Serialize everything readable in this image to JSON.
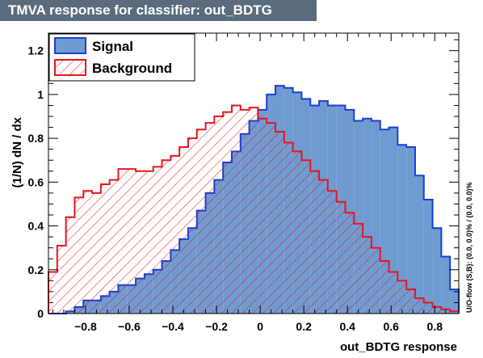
{
  "title": "TMVA response for classifier: out_BDTG",
  "colors": {
    "title_bg": "#5a6b7d",
    "signal_fill": "#6f9bd1",
    "signal_line": "#1a3fd4",
    "background_line": "#e8151e",
    "background_hatch": "#e8151e"
  },
  "chart_data": {
    "type": "bar",
    "xlabel": "out_BDTG response",
    "ylabel": "(1/N) dN / dx",
    "xlim": [
      -0.97,
      0.91
    ],
    "ylim": [
      0,
      1.28
    ],
    "x_ticks": [
      -0.8,
      -0.6,
      -0.4,
      -0.2,
      0,
      0.2,
      0.4,
      0.6,
      0.8
    ],
    "x_tick_labels": [
      "−0.8",
      "−0.6",
      "−0.4",
      "−0.2",
      "0",
      "0.2",
      "0.4",
      "0.6",
      "0.8"
    ],
    "y_ticks": [
      0,
      0.2,
      0.4,
      0.6,
      0.8,
      1,
      1.2
    ],
    "y_tick_labels": [
      "0",
      "0.2",
      "0.4",
      "0.6",
      "0.8",
      "1",
      "1.2"
    ],
    "grid": false,
    "legend_position": "top-left",
    "overflow_text": "U/O-flow (S,B): (0.0, 0.0)% / (0.0, 0.0)%",
    "bin_width": 0.04,
    "series": [
      {
        "name": "Signal",
        "style": "solid-fill",
        "bins": [
          [
            -0.97,
            0.0
          ],
          [
            -0.93,
            0.0
          ],
          [
            -0.89,
            0.01
          ],
          [
            -0.85,
            0.03
          ],
          [
            -0.81,
            0.06
          ],
          [
            -0.77,
            0.06
          ],
          [
            -0.73,
            0.08
          ],
          [
            -0.69,
            0.1
          ],
          [
            -0.65,
            0.13
          ],
          [
            -0.61,
            0.13
          ],
          [
            -0.57,
            0.16
          ],
          [
            -0.53,
            0.18
          ],
          [
            -0.49,
            0.2
          ],
          [
            -0.45,
            0.24
          ],
          [
            -0.41,
            0.29
          ],
          [
            -0.37,
            0.34
          ],
          [
            -0.33,
            0.39
          ],
          [
            -0.29,
            0.47
          ],
          [
            -0.25,
            0.55
          ],
          [
            -0.21,
            0.61
          ],
          [
            -0.17,
            0.69
          ],
          [
            -0.13,
            0.74
          ],
          [
            -0.09,
            0.82
          ],
          [
            -0.05,
            0.88
          ],
          [
            -0.01,
            0.93
          ],
          [
            0.03,
            1.0
          ],
          [
            0.07,
            1.04
          ],
          [
            0.11,
            1.03
          ],
          [
            0.15,
            1.01
          ],
          [
            0.19,
            0.98
          ],
          [
            0.23,
            0.95
          ],
          [
            0.27,
            0.97
          ],
          [
            0.31,
            0.95
          ],
          [
            0.35,
            0.95
          ],
          [
            0.39,
            0.93
          ],
          [
            0.43,
            0.88
          ],
          [
            0.47,
            0.89
          ],
          [
            0.51,
            0.88
          ],
          [
            0.55,
            0.84
          ],
          [
            0.59,
            0.85
          ],
          [
            0.63,
            0.77
          ],
          [
            0.67,
            0.76
          ],
          [
            0.71,
            0.63
          ],
          [
            0.75,
            0.52
          ],
          [
            0.79,
            0.39
          ],
          [
            0.83,
            0.26
          ],
          [
            0.87,
            0.11
          ]
        ]
      },
      {
        "name": "Background",
        "style": "hatched",
        "bins": [
          [
            -0.97,
            0.19
          ],
          [
            -0.93,
            0.31
          ],
          [
            -0.89,
            0.44
          ],
          [
            -0.85,
            0.53
          ],
          [
            -0.81,
            0.56
          ],
          [
            -0.77,
            0.55
          ],
          [
            -0.73,
            0.59
          ],
          [
            -0.69,
            0.61
          ],
          [
            -0.65,
            0.66
          ],
          [
            -0.61,
            0.66
          ],
          [
            -0.57,
            0.65
          ],
          [
            -0.53,
            0.65
          ],
          [
            -0.49,
            0.67
          ],
          [
            -0.45,
            0.7
          ],
          [
            -0.41,
            0.72
          ],
          [
            -0.37,
            0.76
          ],
          [
            -0.33,
            0.8
          ],
          [
            -0.29,
            0.84
          ],
          [
            -0.25,
            0.87
          ],
          [
            -0.21,
            0.9
          ],
          [
            -0.17,
            0.92
          ],
          [
            -0.13,
            0.95
          ],
          [
            -0.09,
            0.93
          ],
          [
            -0.05,
            0.94
          ],
          [
            -0.01,
            0.89
          ],
          [
            0.03,
            0.87
          ],
          [
            0.07,
            0.83
          ],
          [
            0.11,
            0.78
          ],
          [
            0.15,
            0.74
          ],
          [
            0.19,
            0.7
          ],
          [
            0.23,
            0.65
          ],
          [
            0.27,
            0.61
          ],
          [
            0.31,
            0.56
          ],
          [
            0.35,
            0.51
          ],
          [
            0.39,
            0.46
          ],
          [
            0.43,
            0.41
          ],
          [
            0.47,
            0.35
          ],
          [
            0.51,
            0.3
          ],
          [
            0.55,
            0.24
          ],
          [
            0.59,
            0.19
          ],
          [
            0.63,
            0.15
          ],
          [
            0.67,
            0.11
          ],
          [
            0.71,
            0.07
          ],
          [
            0.75,
            0.05
          ],
          [
            0.79,
            0.03
          ],
          [
            0.83,
            0.02
          ],
          [
            0.87,
            0.01
          ]
        ]
      }
    ]
  }
}
